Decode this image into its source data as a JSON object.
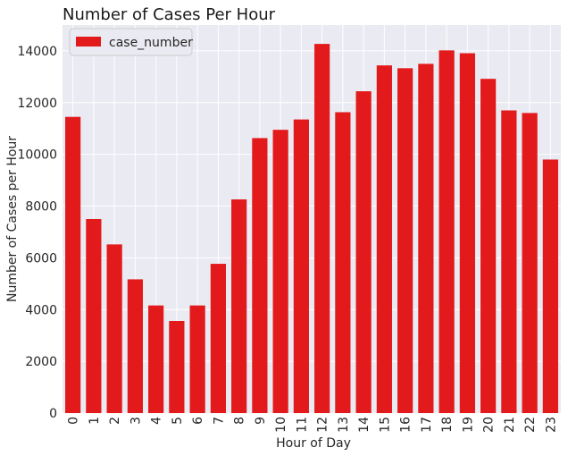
{
  "chart_data": {
    "type": "bar",
    "title": "Number of Cases Per Hour",
    "xlabel": "Hour of Day",
    "ylabel": "Number of Cases per Hour",
    "categories": [
      "0",
      "1",
      "2",
      "3",
      "4",
      "5",
      "6",
      "7",
      "8",
      "9",
      "10",
      "11",
      "12",
      "13",
      "14",
      "15",
      "16",
      "17",
      "18",
      "19",
      "20",
      "21",
      "22",
      "23"
    ],
    "series": [
      {
        "name": "case_number",
        "color": "#e31a1c",
        "values": [
          11450,
          7500,
          6520,
          5170,
          4160,
          3560,
          4160,
          5770,
          8260,
          10630,
          10950,
          11350,
          14270,
          11630,
          12440,
          13440,
          13330,
          13500,
          14020,
          13910,
          12920,
          11700,
          11600,
          9800
        ]
      }
    ],
    "ylim": [
      0,
      15000
    ],
    "yticks": [
      0,
      2000,
      4000,
      6000,
      8000,
      10000,
      12000,
      14000
    ],
    "grid": true,
    "legend": "top-left",
    "background": "#eaeaf2"
  }
}
